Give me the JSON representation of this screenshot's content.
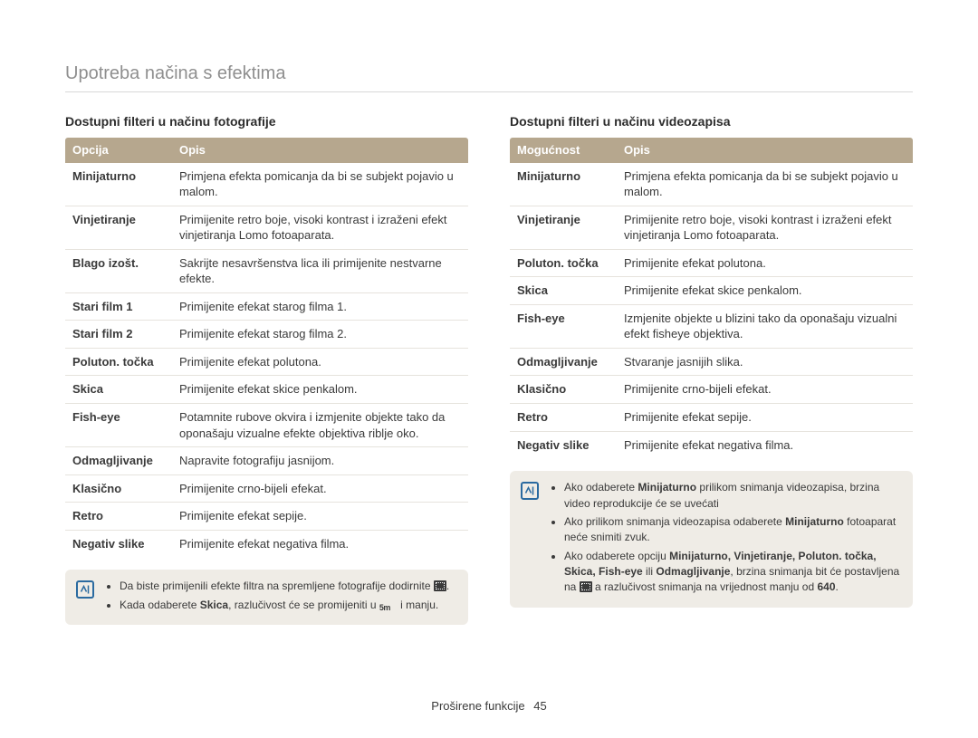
{
  "page_title": "Upotreba načina s efektima",
  "footer_label": "Proširene funkcije",
  "footer_page": "45",
  "left": {
    "section_title": "Dostupni filteri u načinu fotografije",
    "header_opt": "Opcija",
    "header_desc": "Opis",
    "rows": [
      {
        "opt": "Minijaturno",
        "desc": "Primjena efekta pomicanja da bi se subjekt pojavio u malom."
      },
      {
        "opt": "Vinjetiranje",
        "desc": "Primijenite retro boje, visoki kontrast i izraženi efekt vinjetiranja Lomo fotoaparata."
      },
      {
        "opt": "Blago izošt.",
        "desc": "Sakrijte nesavršenstva lica ili primijenite nestvarne efekte."
      },
      {
        "opt": "Stari film 1",
        "desc": "Primijenite efekat starog filma 1."
      },
      {
        "opt": "Stari film 2",
        "desc": "Primijenite efekat starog filma 2."
      },
      {
        "opt": "Poluton. točka",
        "desc": "Primijenite efekat polutona."
      },
      {
        "opt": "Skica",
        "desc": "Primijenite efekat skice penkalom."
      },
      {
        "opt": "Fish-eye",
        "desc": "Potamnite rubove okvira i izmjenite objekte tako da oponašaju vizualne efekte objektiva riblje oko."
      },
      {
        "opt": "Odmagljivanje",
        "desc": "Napravite fotografiju jasnijom."
      },
      {
        "opt": "Klasično",
        "desc": "Primijenite crno-bijeli efekat."
      },
      {
        "opt": "Retro",
        "desc": "Primijenite efekat sepije."
      },
      {
        "opt": "Negativ slike",
        "desc": "Primijenite efekat negativa filma."
      }
    ],
    "note1_pre": "Da biste primijenili efekte filtra na spremljene fotografije dodirnite ",
    "note1_post": ".",
    "note2_pre": "Kada odaberete ",
    "note2_bold": "Skica",
    "note2_mid": ", razlučivost će se promijeniti u ",
    "note2_res": "5m",
    "note2_post": " i manju."
  },
  "right": {
    "section_title": "Dostupni filteri u načinu videozapisa",
    "header_opt": "Mogućnost",
    "header_desc": "Opis",
    "rows": [
      {
        "opt": "Minijaturno",
        "desc": "Primjena efekta pomicanja da bi se subjekt pojavio u malom."
      },
      {
        "opt": "Vinjetiranje",
        "desc": "Primijenite retro boje, visoki kontrast i izraženi efekt vinjetiranja Lomo fotoaparata."
      },
      {
        "opt": "Poluton. točka",
        "desc": "Primijenite efekat polutona."
      },
      {
        "opt": "Skica",
        "desc": "Primijenite efekat skice penkalom."
      },
      {
        "opt": "Fish-eye",
        "desc": "Izmjenite objekte u blizini tako da oponašaju vizualni efekt fisheye objektiva."
      },
      {
        "opt": "Odmagljivanje",
        "desc": "Stvaranje jasnijih slika."
      },
      {
        "opt": "Klasično",
        "desc": "Primijenite crno-bijeli efekat."
      },
      {
        "opt": "Retro",
        "desc": "Primijenite efekat sepije."
      },
      {
        "opt": "Negativ slike",
        "desc": "Primijenite efekat negativa filma."
      }
    ],
    "note1_pre": "Ako odaberete ",
    "note1_bold": "Minijaturno",
    "note1_post": " prilikom snimanja videozapisa, brzina video reprodukcije će se uvećati",
    "note2_pre": "Ako prilikom snimanja videozapisa odaberete ",
    "note2_bold": "Minijaturno",
    "note2_post": " fotoaparat neće snimiti zvuk.",
    "note3_pre": "Ako odaberete opciju ",
    "note3_bold": "Minijaturno, Vinjetiranje, Poluton. točka, Skica, Fish-eye",
    "note3_mid1": " ili ",
    "note3_bold2": "Odmagljivanje",
    "note3_mid2": ", brzina snimanja bit će postavljena na ",
    "note3_mid3": " a razlučivost snimanja na vrijednost manju od ",
    "note3_bold3": "640",
    "note3_post": "."
  }
}
